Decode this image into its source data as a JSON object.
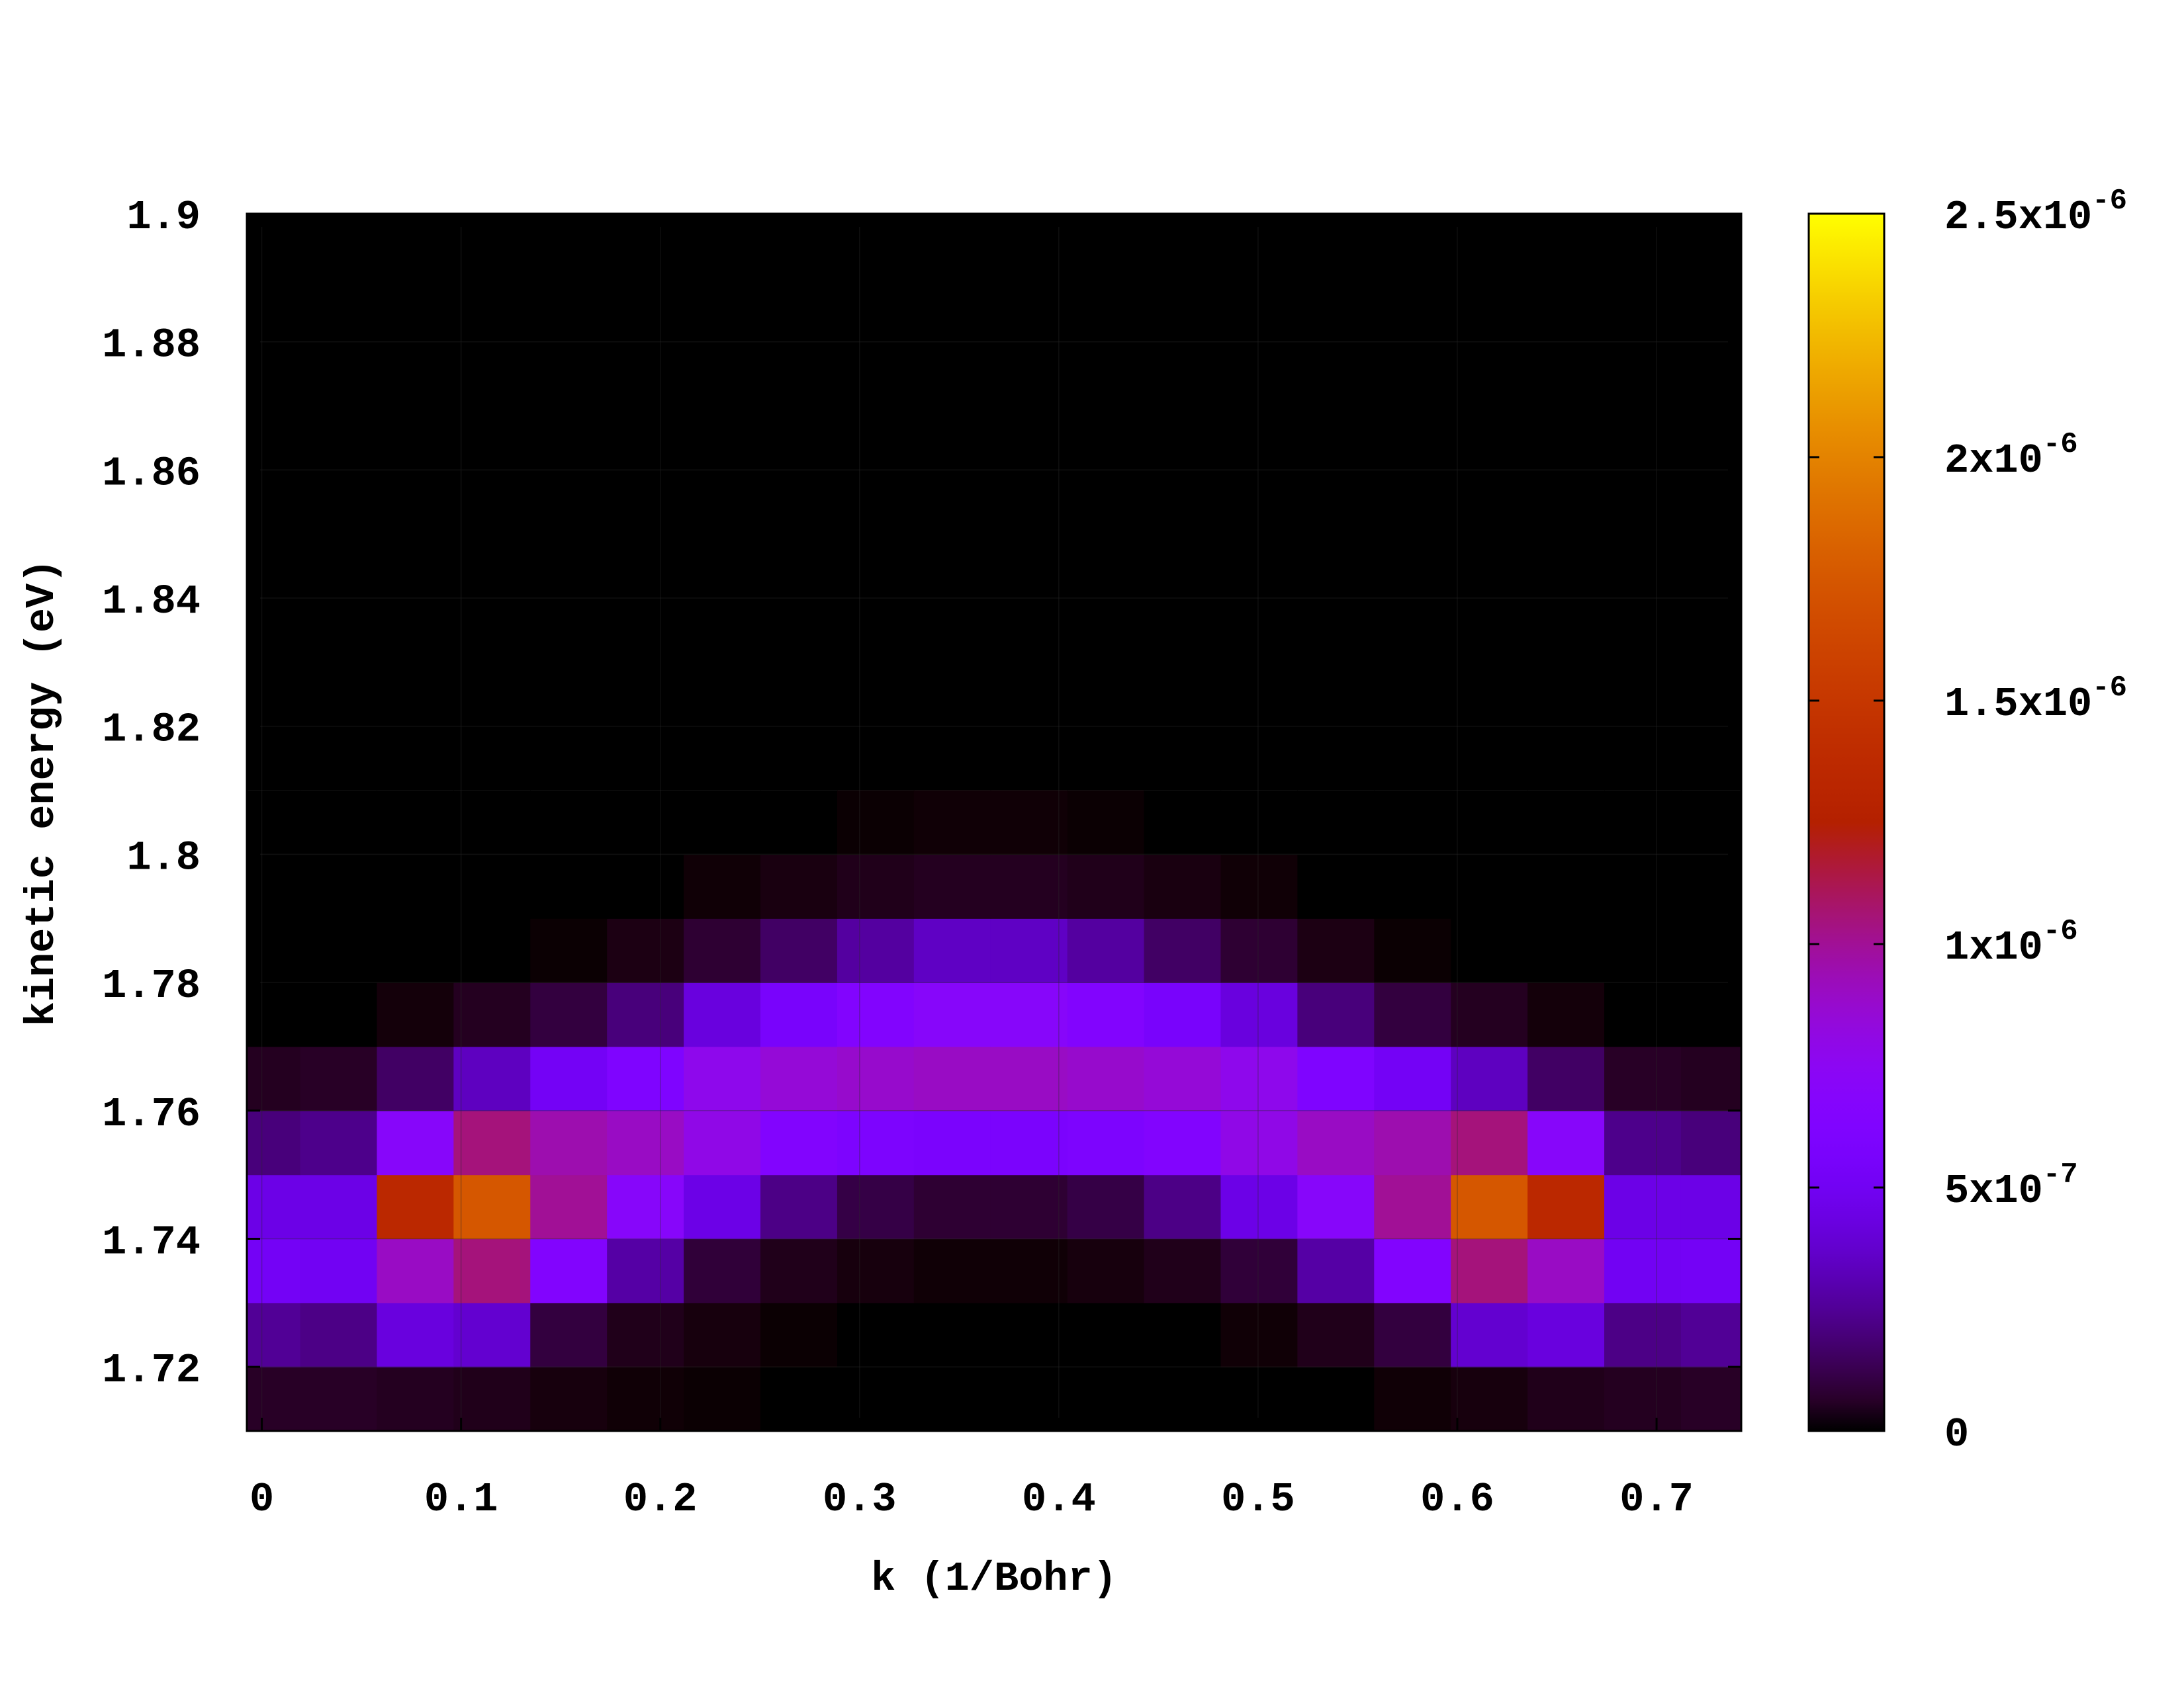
{
  "chart_data": {
    "type": "heatmap",
    "xlabel": "k (1/Bohr)",
    "ylabel": "kinetic energy (eV)",
    "x_ticks": [
      "0",
      "0.1",
      "0.2",
      "0.3",
      "0.4",
      "0.5",
      "0.6",
      "0.7"
    ],
    "x_tick_values": [
      0,
      0.1,
      0.2,
      0.3,
      0.4,
      0.5,
      0.6,
      0.7
    ],
    "y_ticks": [
      "1.72",
      "1.74",
      "1.76",
      "1.78",
      "1.8",
      "1.82",
      "1.84",
      "1.86",
      "1.88",
      "1.9"
    ],
    "y_tick_values": [
      1.72,
      1.74,
      1.76,
      1.78,
      1.8,
      1.82,
      1.84,
      1.86,
      1.88,
      1.9
    ],
    "xlim": [
      -0.0075,
      0.7425
    ],
    "ylim": [
      1.71,
      1.9
    ],
    "cell_width": 0.0385,
    "cell_height": 0.01,
    "x_centers": [
      0.0,
      0.0385,
      0.077,
      0.1155,
      0.154,
      0.1925,
      0.231,
      0.2695,
      0.308,
      0.3465,
      0.385,
      0.4235,
      0.462,
      0.5005,
      0.539,
      0.5775,
      0.616,
      0.6545,
      0.693,
      0.7315
    ],
    "y_centers": [
      1.715,
      1.725,
      1.735,
      1.745,
      1.755,
      1.765,
      1.775,
      1.785,
      1.795,
      1.805
    ],
    "z": [
      [
        6e-08,
        6e-08,
        5e-08,
        4e-08,
        2e-08,
        1e-08,
        5e-09,
        0,
        0,
        0,
        0,
        0,
        0,
        0,
        0,
        1e-08,
        2e-08,
        4e-08,
        5e-08,
        6e-08
      ],
      [
        2.5e-07,
        2.2e-07,
        4.2e-07,
        3.8e-07,
        1e-07,
        4e-08,
        2e-08,
        5e-09,
        0,
        0,
        0,
        0,
        0,
        1e-08,
        4e-08,
        1e-07,
        3.8e-07,
        4.2e-07,
        2.2e-07,
        2.5e-07
      ],
      [
        5.2e-07,
        5e-07,
        9e-07,
        1.05e-06,
        6.5e-07,
        2.8e-07,
        9e-08,
        4e-08,
        2e-08,
        1e-08,
        1e-08,
        2e-08,
        4e-08,
        9e-08,
        2.8e-07,
        6.5e-07,
        1.05e-06,
        9e-07,
        5e-07,
        5.2e-07
      ],
      [
        4.5e-07,
        4.5e-07,
        1.35e-06,
        1.75e-06,
        1e-06,
        7e-07,
        4.5e-07,
        2.2e-07,
        1.1e-07,
        8e-08,
        8e-08,
        1.1e-07,
        2.2e-07,
        4.5e-07,
        7e-07,
        1e-06,
        1.75e-06,
        1.35e-06,
        4.5e-07,
        4.5e-07
      ],
      [
        2e-07,
        2.3e-07,
        7e-07,
        1.05e-06,
        9.5e-07,
        9e-07,
        8e-07,
        6.5e-07,
        6e-07,
        5.8e-07,
        5.8e-07,
        6e-07,
        6.5e-07,
        8e-07,
        9e-07,
        9.5e-07,
        1.05e-06,
        7e-07,
        2.3e-07,
        2e-07
      ],
      [
        5e-08,
        6e-08,
        1.6e-07,
        3.4e-07,
        5.2e-07,
        6.2e-07,
        7.8e-07,
        8.5e-07,
        8.8e-07,
        9e-07,
        9e-07,
        8.8e-07,
        8.5e-07,
        7.8e-07,
        6.2e-07,
        5.2e-07,
        3.4e-07,
        1.6e-07,
        6e-08,
        5e-08
      ],
      [
        0,
        0,
        1.5e-08,
        5e-08,
        1e-07,
        2e-07,
        4.2e-07,
        5.6e-07,
        6.5e-07,
        7e-07,
        7e-07,
        6.5e-07,
        5.6e-07,
        4.2e-07,
        2e-07,
        1e-07,
        5e-08,
        1.5e-08,
        0,
        0
      ],
      [
        0,
        0,
        0,
        0,
        5e-09,
        3e-08,
        8e-08,
        1.6e-07,
        2.7e-07,
        3.5e-07,
        3.5e-07,
        2.7e-07,
        1.6e-07,
        8e-08,
        3e-08,
        5e-09,
        0,
        0,
        0,
        0
      ],
      [
        0,
        0,
        0,
        0,
        0,
        0,
        1e-08,
        2.5e-08,
        4e-08,
        5e-08,
        5e-08,
        4e-08,
        2.5e-08,
        1e-08,
        0,
        0,
        0,
        0,
        0,
        0
      ],
      [
        0,
        0,
        0,
        0,
        0,
        0,
        0,
        0,
        5e-09,
        1e-08,
        1e-08,
        5e-09,
        0,
        0,
        0,
        0,
        0,
        0,
        0,
        0
      ]
    ],
    "colorbar": {
      "min": 0,
      "max": 2.5e-06,
      "tick_values": [
        0,
        5e-07,
        1e-06,
        1.5e-06,
        2e-06,
        2.5e-06
      ],
      "tick_labels": [
        {
          "mantissa": "0",
          "exponent": ""
        },
        {
          "mantissa": "5x10",
          "exponent": "-7"
        },
        {
          "mantissa": "1x10",
          "exponent": "-6"
        },
        {
          "mantissa": "1.5x10",
          "exponent": "-6"
        },
        {
          "mantissa": "2x10",
          "exponent": "-6"
        },
        {
          "mantissa": "2.5x10",
          "exponent": "-6"
        }
      ],
      "palette": "gnuplot-pm3d-hot"
    },
    "grid": true
  }
}
